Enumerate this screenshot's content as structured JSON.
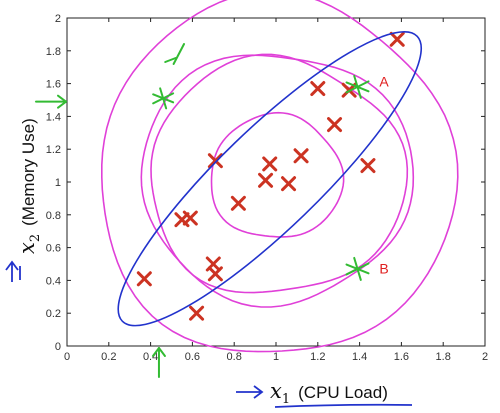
{
  "chart_data": {
    "type": "scatter",
    "xlim": [
      0,
      2
    ],
    "ylim": [
      0,
      2
    ],
    "x_ticks": [
      "0",
      "0.2",
      "0.4",
      "0.6",
      "0.8",
      "1",
      "1.2",
      "1.4",
      "1.6",
      "1.8",
      "2"
    ],
    "y_ticks": [
      "0",
      "0.2",
      "0.4",
      "0.6",
      "0.8",
      "1",
      "1.2",
      "1.4",
      "1.6",
      "1.8",
      "2"
    ],
    "xlabel": {
      "symbol": "x",
      "subscript": "1",
      "text": "(CPU Load)"
    },
    "ylabel": {
      "symbol": "x",
      "subscript": "2",
      "text": "(Memory Use)"
    },
    "grid": false,
    "marker": "x",
    "marker_color": "#cc3322",
    "points": [
      {
        "x": 1.58,
        "y": 1.87
      },
      {
        "x": 1.2,
        "y": 1.57
      },
      {
        "x": 1.35,
        "y": 1.56
      },
      {
        "x": 1.28,
        "y": 1.35
      },
      {
        "x": 0.71,
        "y": 1.13
      },
      {
        "x": 0.97,
        "y": 1.11
      },
      {
        "x": 1.12,
        "y": 1.16
      },
      {
        "x": 0.95,
        "y": 1.01
      },
      {
        "x": 1.06,
        "y": 0.99
      },
      {
        "x": 1.44,
        "y": 1.1
      },
      {
        "x": 0.82,
        "y": 0.87
      },
      {
        "x": 0.55,
        "y": 0.77
      },
      {
        "x": 0.59,
        "y": 0.78
      },
      {
        "x": 0.7,
        "y": 0.5
      },
      {
        "x": 0.71,
        "y": 0.44
      },
      {
        "x": 0.37,
        "y": 0.41
      },
      {
        "x": 0.62,
        "y": 0.2
      }
    ],
    "annotations": [
      {
        "text": "A",
        "x": 1.38,
        "y": 1.6,
        "color": "#e02020"
      },
      {
        "text": "B",
        "x": 1.38,
        "y": 0.46,
        "color": "#e02020"
      }
    ],
    "overlay_colors": {
      "gaussian_contours": "#e040d8",
      "correlated_ellipse": "#2233cc",
      "pen_marks": "#33bb33"
    }
  }
}
